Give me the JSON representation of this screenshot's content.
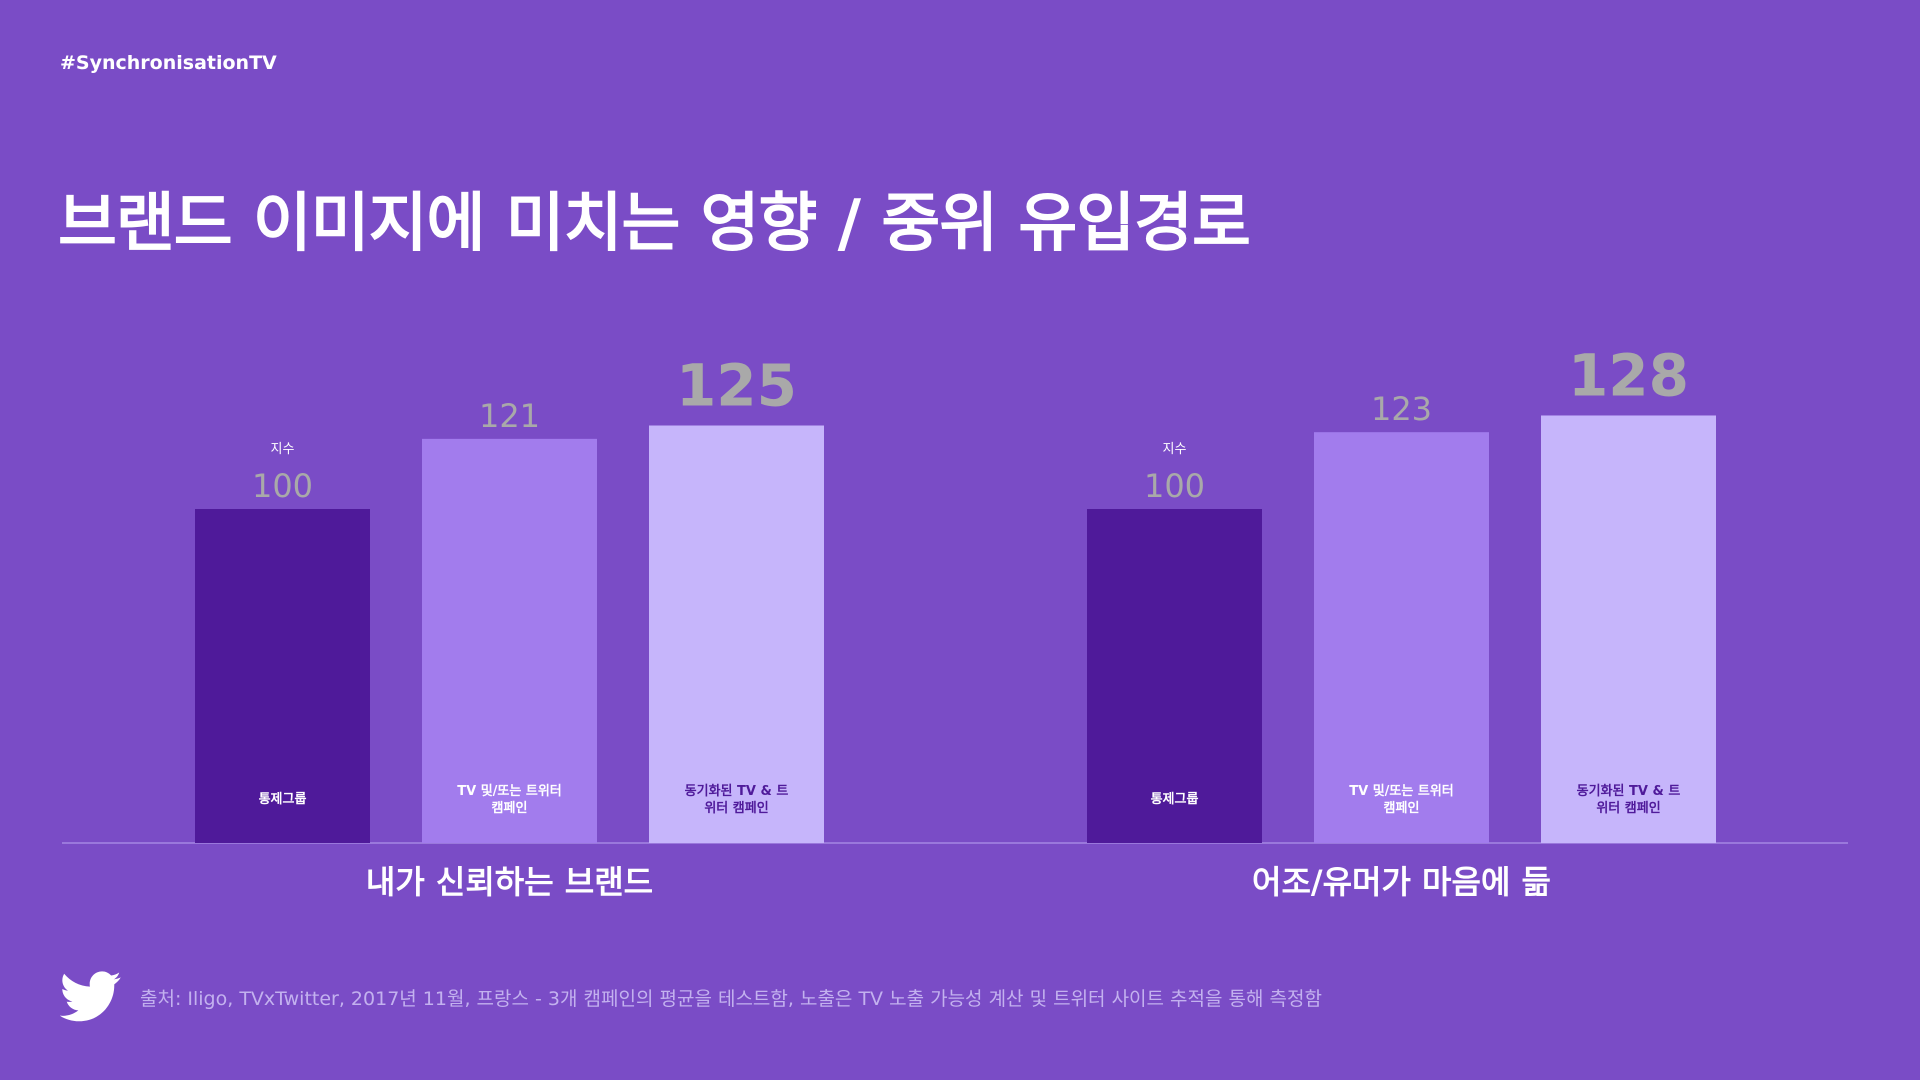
{
  "header": {
    "hashtag": "#SynchronisationTV",
    "title": "브랜드 이미지에 미치는 영향 / 중위 유입경로"
  },
  "footer": {
    "icon": "twitter-bird-icon",
    "source": "출처: Iligo, TVxTwitter, 2017년 11월, 프랑스 - 3개 캠페인의 평균을 테스트함, 노출은 TV 노출 가능성 계산 및 트위터 사이트 추적을 통해 측정함"
  },
  "colors": {
    "background": "#7a4cc6",
    "control": "#4f1a9a",
    "tv_or_twitter": "#a27ced",
    "synchronized": "#c6b5fb",
    "value_label": "#a9a9a9",
    "baseline": "#9a78dc"
  },
  "chart_data": {
    "type": "bar",
    "ylim": [
      0,
      128
    ],
    "categories": [
      "통제그룹",
      "TV 및/또는 트위터 캠페인",
      "동기화된 TV & 트위터 캠페인"
    ],
    "category_labels": [
      [
        "통제그룹"
      ],
      [
        "TV 및/또는 트위터",
        "캠페인"
      ],
      [
        "동기화된 TV & 트",
        "위터 캠페인"
      ]
    ],
    "index_label": "지수",
    "groups": [
      {
        "name": "내가 신뢰하는 브랜드",
        "values": [
          100,
          121,
          125
        ]
      },
      {
        "name": "어조/유머가 마음에 듦",
        "values": [
          100,
          123,
          128
        ]
      }
    ],
    "grid": false,
    "legend": "none"
  }
}
